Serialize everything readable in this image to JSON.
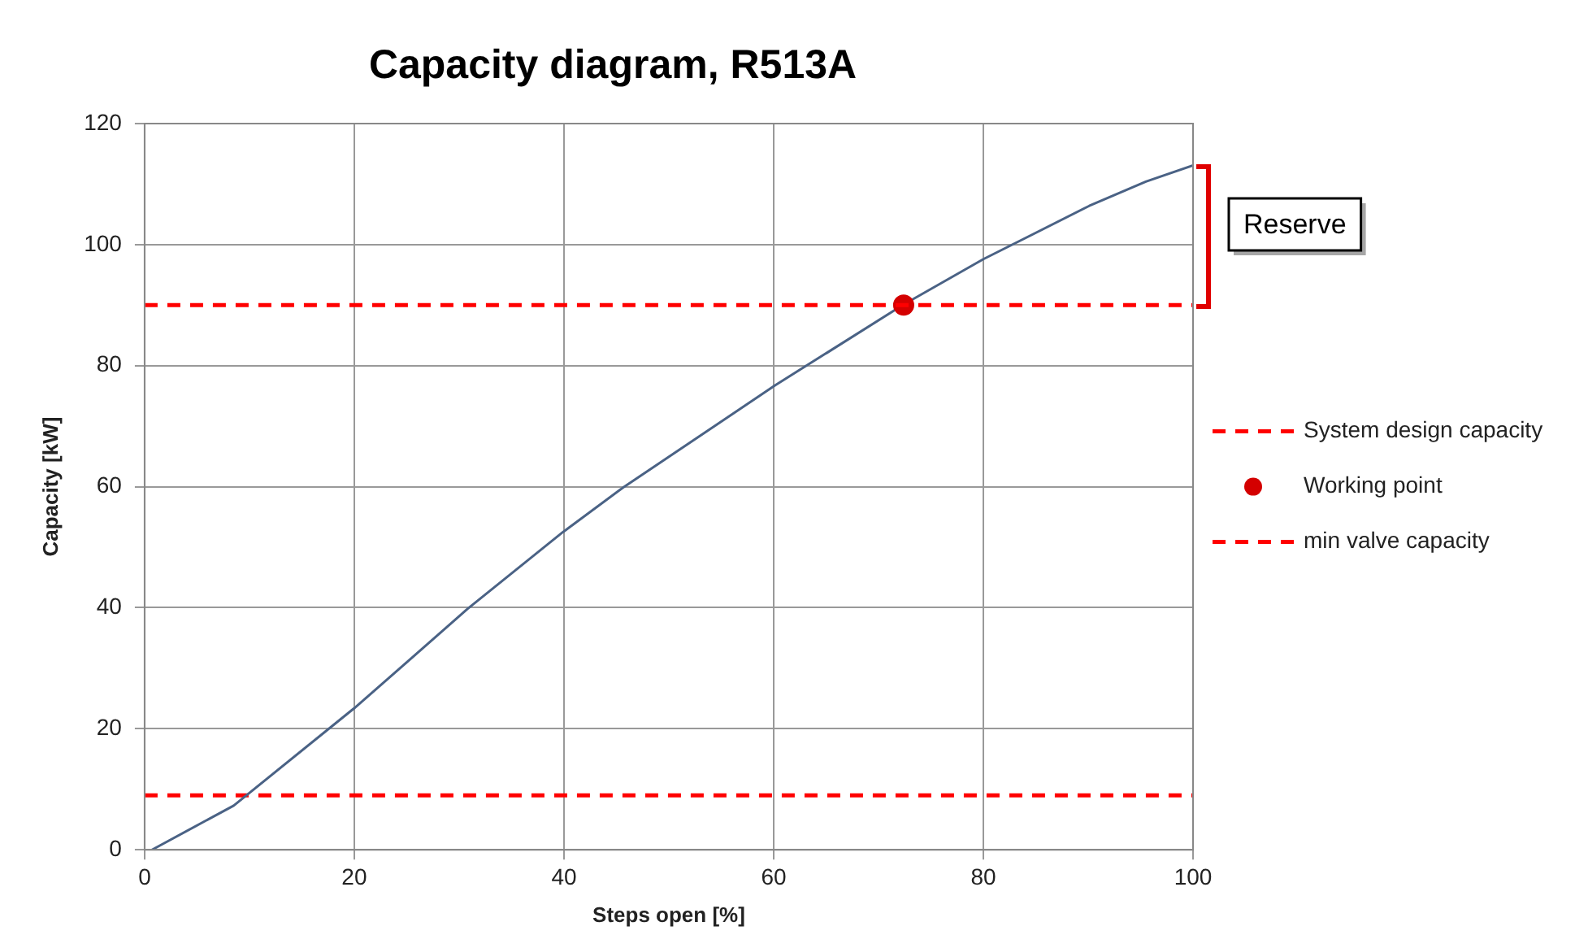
{
  "chart_data": {
    "type": "line",
    "title": "Capacity diagram, R513A",
    "xlabel": "Steps open [%]",
    "ylabel": "Capacity [kW]",
    "xlim": [
      0,
      100
    ],
    "xticks": [
      0,
      20,
      40,
      60,
      80,
      100
    ],
    "ylim": [
      0,
      120
    ],
    "yticks": [
      0,
      20,
      40,
      60,
      80,
      100,
      120
    ],
    "grid": true,
    "legend": "right",
    "series": [
      {
        "name": "Working point",
        "type": "scatter",
        "color": "#d40000",
        "marker": "circle",
        "x": [
          72.4
        ],
        "values": [
          90
        ]
      },
      {
        "color": "#4a6285",
        "marker": "none",
        "x": [
          0.7,
          8.5,
          20,
          30.8,
          39.9,
          45.6,
          60.1,
          72.4,
          80,
          90.1,
          95.5,
          100
        ],
        "values": [
          0,
          7.3,
          23.4,
          39.8,
          52.5,
          59.8,
          76.7,
          90.1,
          97.6,
          106.4,
          110.4,
          113.1
        ]
      }
    ],
    "ref_lines": [
      {
        "axis": "y",
        "value": 90,
        "label": "System design capacity",
        "color": "#ff0000",
        "line_style": "dashed"
      },
      {
        "axis": "y",
        "value": 9,
        "label": "min valve capacity",
        "color": "#ff0000",
        "line_style": "dashed"
      }
    ],
    "annotations": [
      "Reserve"
    ]
  }
}
